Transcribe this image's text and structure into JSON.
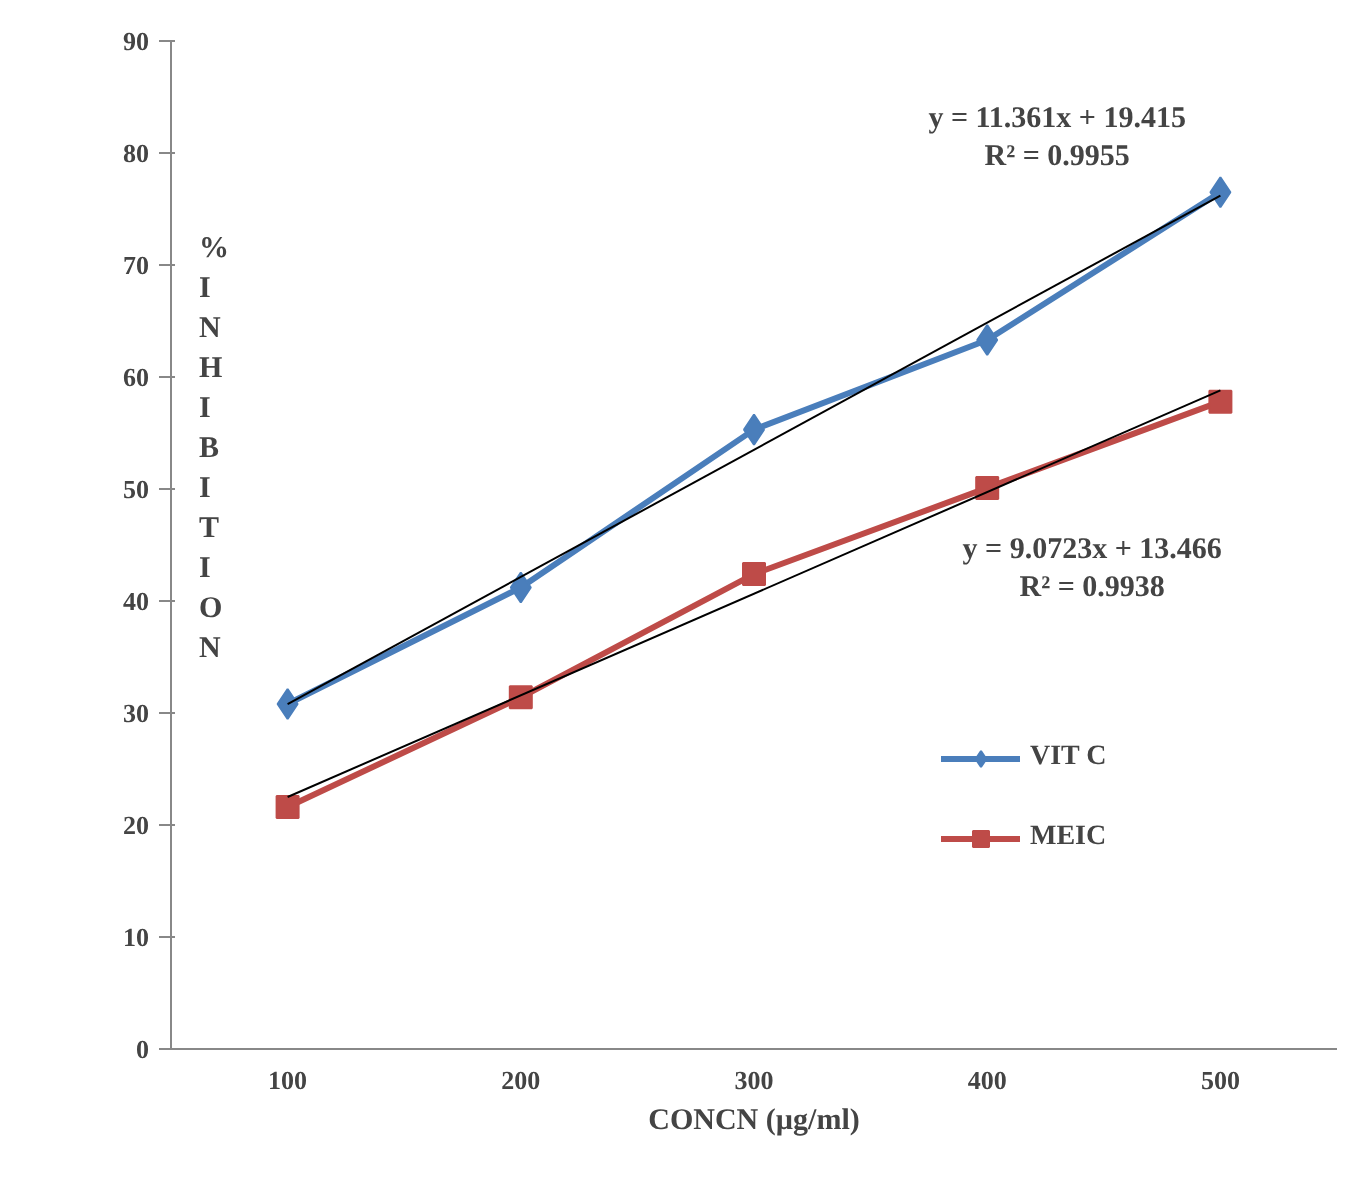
{
  "chart_data": {
    "type": "line",
    "xlabel": "CONCN (µg/ml)",
    "ylabel": "% INHIBITION",
    "categories": [
      "100",
      "200",
      "300",
      "400",
      "500"
    ],
    "series": [
      {
        "name": "VIT C",
        "color": "#4a7ebb",
        "marker": "diamond",
        "values": [
          30.8,
          41.2,
          55.3,
          63.3,
          76.5
        ]
      },
      {
        "name": "MEIC",
        "color": "#be4b48",
        "marker": "square",
        "values": [
          21.6,
          31.4,
          42.4,
          50.1,
          57.8
        ]
      },
      {
        "type": "line",
        "color": "#000000",
        "marker": "none",
        "x": [
          "100",
          "500"
        ],
        "values": [
          30.8,
          76.2
        ]
      },
      {
        "type": "line",
        "color": "#000000",
        "marker": "none",
        "x": [
          "100",
          "500"
        ],
        "values": [
          22.5,
          58.8
        ]
      }
    ],
    "annotations": [
      "y = 11.361x + 19.415\nR² = 0.9955",
      "y = 9.0723x + 13.466\nR² = 0.9938"
    ],
    "ylim": [
      0,
      90
    ],
    "yticks": [
      0,
      10,
      20,
      30,
      40,
      50,
      60,
      70,
      80,
      90
    ],
    "grid": false,
    "legend": "right",
    "line_style": "solid"
  }
}
